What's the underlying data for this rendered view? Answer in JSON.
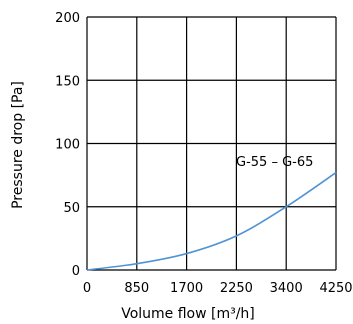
{
  "chart_data": {
    "type": "line",
    "title": "",
    "xlabel": "Volume flow [m³/h]",
    "ylabel": "Pressure drop [Pa]",
    "x_ticks": [
      0,
      850,
      1700,
      2250,
      3400,
      4250
    ],
    "x_tick_labels": [
      "0",
      "850",
      "1700",
      "2250",
      "3400",
      "4250"
    ],
    "y_ticks": [
      0,
      50,
      100,
      150,
      200
    ],
    "y_tick_labels": [
      "0",
      "50",
      "100",
      "150",
      "200"
    ],
    "ylim": [
      0,
      200
    ],
    "grid": true,
    "series": [
      {
        "name": "G-55 – G-65",
        "color": "#4f93d3",
        "x": [
          0,
          850,
          1700,
          2250,
          3400,
          4250
        ],
        "y": [
          0,
          5,
          13,
          27,
          50,
          77
        ]
      }
    ]
  }
}
